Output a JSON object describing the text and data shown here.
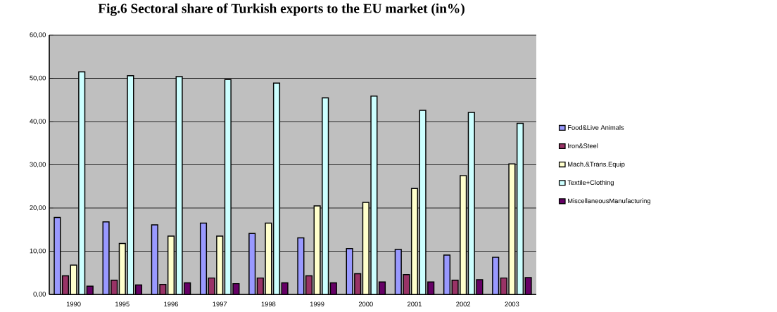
{
  "chart_data": {
    "type": "bar",
    "title": "Fig.6 Sectoral share of Turkish exports to the EU market (in%)",
    "categories": [
      "1990",
      "1995",
      "1996",
      "1997",
      "1998",
      "1999",
      "2000",
      "2001",
      "2002",
      "2003"
    ],
    "series": [
      {
        "name": "Food&Live Animals",
        "color": "#9999ff",
        "values": [
          17.8,
          16.8,
          16.1,
          16.5,
          14.1,
          13.1,
          10.6,
          10.4,
          9.1,
          8.6
        ]
      },
      {
        "name": "Iron&Steel",
        "color": "#993366",
        "values": [
          4.3,
          3.3,
          2.3,
          3.8,
          3.8,
          4.3,
          4.8,
          4.6,
          3.3,
          3.8
        ]
      },
      {
        "name": "Mach.&Trans.Equip",
        "color": "#ffffcc",
        "values": [
          6.8,
          11.8,
          13.5,
          13.5,
          16.5,
          20.5,
          21.3,
          24.5,
          27.5,
          30.2
        ]
      },
      {
        "name": "Textile+Clothing",
        "color": "#ccffff",
        "values": [
          51.5,
          50.6,
          50.4,
          49.7,
          48.9,
          45.5,
          45.9,
          42.6,
          42.1,
          39.6
        ]
      },
      {
        "name": "MiscellaneousManufacturing",
        "color": "#660066",
        "values": [
          1.9,
          2.2,
          2.7,
          2.5,
          2.7,
          2.7,
          2.9,
          2.9,
          3.4,
          3.9
        ]
      }
    ],
    "ylim": [
      0,
      60
    ],
    "yticks": [
      {
        "value": 0,
        "label": "0,00"
      },
      {
        "value": 10,
        "label": "10,00"
      },
      {
        "value": 20,
        "label": "20,00"
      },
      {
        "value": 30,
        "label": "30,00"
      },
      {
        "value": 40,
        "label": "40,00"
      },
      {
        "value": 50,
        "label": "50,00"
      },
      {
        "value": 60,
        "label": "60,00"
      }
    ],
    "grid": "y",
    "legend": "right"
  }
}
